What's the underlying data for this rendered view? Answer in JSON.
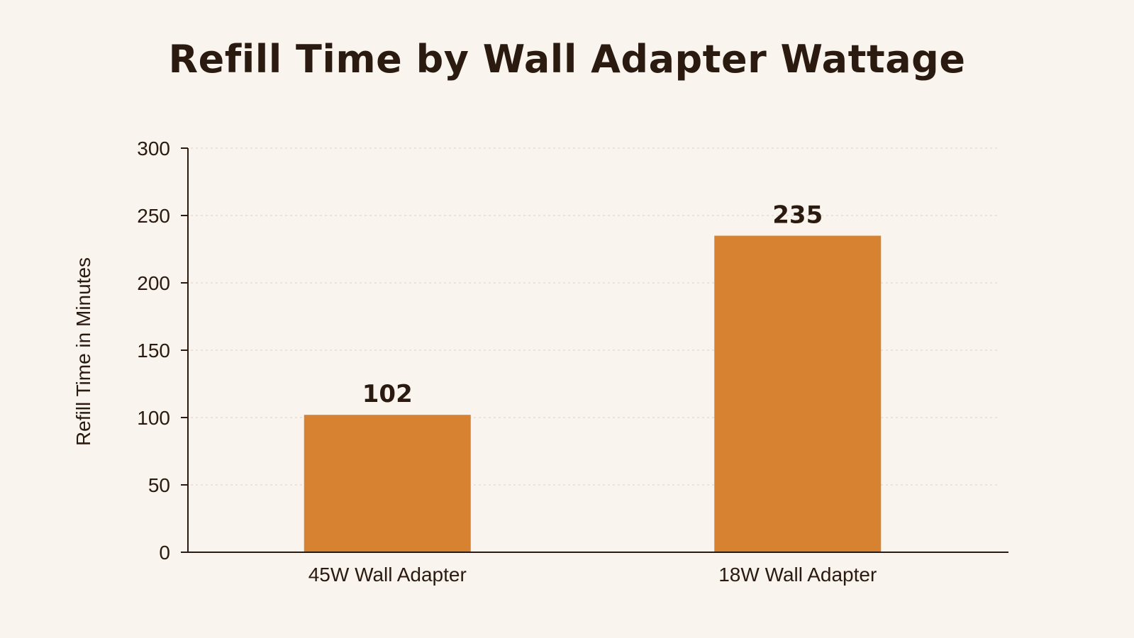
{
  "chart_data": {
    "type": "bar",
    "title": "Refill Time by Wall Adapter Wattage",
    "xlabel": "",
    "ylabel": "Refill Time in Minutes",
    "categories": [
      "45W Wall Adapter",
      "18W Wall Adapter"
    ],
    "values": [
      102,
      235
    ],
    "value_labels": [
      "102",
      "235"
    ],
    "ylim": [
      0,
      300
    ],
    "yticks": [
      0,
      50,
      100,
      150,
      200,
      250,
      300
    ],
    "ytick_labels": [
      "0",
      "50",
      "100",
      "150",
      "200",
      "250",
      "300"
    ],
    "grid": true,
    "legend": "none",
    "colors": {
      "bar": "#d68230",
      "background": "#f9f5ee",
      "text": "#2a1a10",
      "axis": "#2a1a10",
      "grid": "#d9d2c4"
    }
  }
}
